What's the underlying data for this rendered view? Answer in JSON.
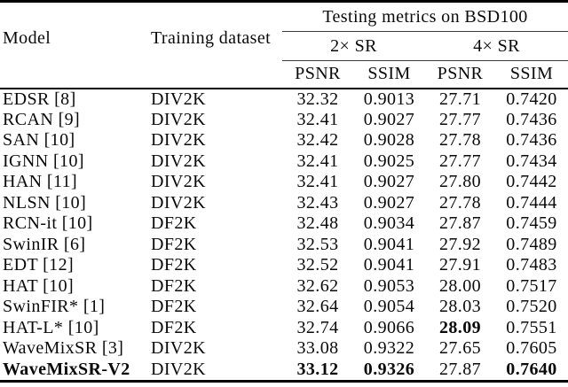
{
  "figure": {
    "kind": "paper-results-table",
    "colors": {
      "background": "#ffffff",
      "text": "#000000",
      "thick_rule": "#000000",
      "thin_rule": "#3c3c3c"
    }
  },
  "table": {
    "header": {
      "model": "Model",
      "training": "Training dataset",
      "testing_group": "Testing metrics on BSD100",
      "scale_2x": "2× SR",
      "scale_4x": "4× SR",
      "metrics": [
        "PSNR",
        "SSIM",
        "PSNR",
        "SSIM"
      ]
    },
    "rows": [
      {
        "model": "EDSR [8]",
        "training": "DIV2K",
        "psnr2": "32.32",
        "ssim2": "0.9013",
        "psnr4": "27.71",
        "ssim4": "0.7420",
        "bold": []
      },
      {
        "model": "RCAN [9]",
        "training": "DIV2K",
        "psnr2": "32.41",
        "ssim2": "0.9027",
        "psnr4": "27.77",
        "ssim4": "0.7436",
        "bold": []
      },
      {
        "model": "SAN [10]",
        "training": "DIV2K",
        "psnr2": "32.42",
        "ssim2": "0.9028",
        "psnr4": "27.78",
        "ssim4": "0.7436",
        "bold": []
      },
      {
        "model": "IGNN [10]",
        "training": "DIV2K",
        "psnr2": "32.41",
        "ssim2": "0.9025",
        "psnr4": "27.77",
        "ssim4": "0.7434",
        "bold": []
      },
      {
        "model": "HAN [11]",
        "training": "DIV2K",
        "psnr2": "32.41",
        "ssim2": "0.9027",
        "psnr4": "27.80",
        "ssim4": "0.7442",
        "bold": []
      },
      {
        "model": "NLSN [10]",
        "training": "DIV2K",
        "psnr2": "32.43",
        "ssim2": "0.9027",
        "psnr4": "27.78",
        "ssim4": "0.7444",
        "bold": []
      },
      {
        "model": "RCN-it [10]",
        "training": "DF2K",
        "psnr2": "32.48",
        "ssim2": "0.9034",
        "psnr4": "27.87",
        "ssim4": "0.7459",
        "bold": []
      },
      {
        "model": "SwinIR [6]",
        "training": "DF2K",
        "psnr2": "32.53",
        "ssim2": "0.9041",
        "psnr4": "27.92",
        "ssim4": "0.7489",
        "bold": []
      },
      {
        "model": "EDT [12]",
        "training": "DF2K",
        "psnr2": "32.52",
        "ssim2": "0.9041",
        "psnr4": "27.91",
        "ssim4": "0.7483",
        "bold": []
      },
      {
        "model": "HAT [10]",
        "training": "DF2K",
        "psnr2": "32.62",
        "ssim2": "0.9053",
        "psnr4": "28.00",
        "ssim4": "0.7517",
        "bold": []
      },
      {
        "model": "SwinFIR* [1]",
        "training": "DF2K",
        "psnr2": "32.64",
        "ssim2": "0.9054",
        "psnr4": "28.03",
        "ssim4": "0.7520",
        "bold": []
      },
      {
        "model": "HAT-L* [10]",
        "training": "DF2K",
        "psnr2": "32.74",
        "ssim2": "0.9066",
        "psnr4": "28.09",
        "ssim4": "0.7551",
        "bold": [
          "psnr4"
        ]
      },
      {
        "model": "WaveMixSR [3]",
        "training": "DIV2K",
        "psnr2": "33.08",
        "ssim2": "0.9322",
        "psnr4": "27.65",
        "ssim4": "0.7605",
        "bold": []
      },
      {
        "model": "WaveMixSR-V2",
        "training": "DIV2K",
        "psnr2": "33.12",
        "ssim2": "0.9326",
        "psnr4": "27.87",
        "ssim4": "0.7640",
        "bold": [
          "model",
          "psnr2",
          "ssim2",
          "ssim4"
        ]
      }
    ]
  },
  "chart_data": {
    "type": "table",
    "title": "Testing metrics on BSD100",
    "columns": [
      "Model",
      "Training dataset",
      "2x SR PSNR",
      "2x SR SSIM",
      "4x SR PSNR",
      "4x SR SSIM"
    ],
    "rows": [
      [
        "EDSR [8]",
        "DIV2K",
        32.32,
        0.9013,
        27.71,
        0.742
      ],
      [
        "RCAN [9]",
        "DIV2K",
        32.41,
        0.9027,
        27.77,
        0.7436
      ],
      [
        "SAN [10]",
        "DIV2K",
        32.42,
        0.9028,
        27.78,
        0.7436
      ],
      [
        "IGNN [10]",
        "DIV2K",
        32.41,
        0.9025,
        27.77,
        0.7434
      ],
      [
        "HAN [11]",
        "DIV2K",
        32.41,
        0.9027,
        27.8,
        0.7442
      ],
      [
        "NLSN [10]",
        "DIV2K",
        32.43,
        0.9027,
        27.78,
        0.7444
      ],
      [
        "RCN-it [10]",
        "DF2K",
        32.48,
        0.9034,
        27.87,
        0.7459
      ],
      [
        "SwinIR [6]",
        "DF2K",
        32.53,
        0.9041,
        27.92,
        0.7489
      ],
      [
        "EDT [12]",
        "DF2K",
        32.52,
        0.9041,
        27.91,
        0.7483
      ],
      [
        "HAT [10]",
        "DF2K",
        32.62,
        0.9053,
        28.0,
        0.7517
      ],
      [
        "SwinFIR* [1]",
        "DF2K",
        32.64,
        0.9054,
        28.03,
        0.752
      ],
      [
        "HAT-L* [10]",
        "DF2K",
        32.74,
        0.9066,
        28.09,
        0.7551
      ],
      [
        "WaveMixSR [3]",
        "DIV2K",
        33.08,
        0.9322,
        27.65,
        0.7605
      ],
      [
        "WaveMixSR-V2",
        "DIV2K",
        33.12,
        0.9326,
        27.87,
        0.764
      ]
    ]
  }
}
